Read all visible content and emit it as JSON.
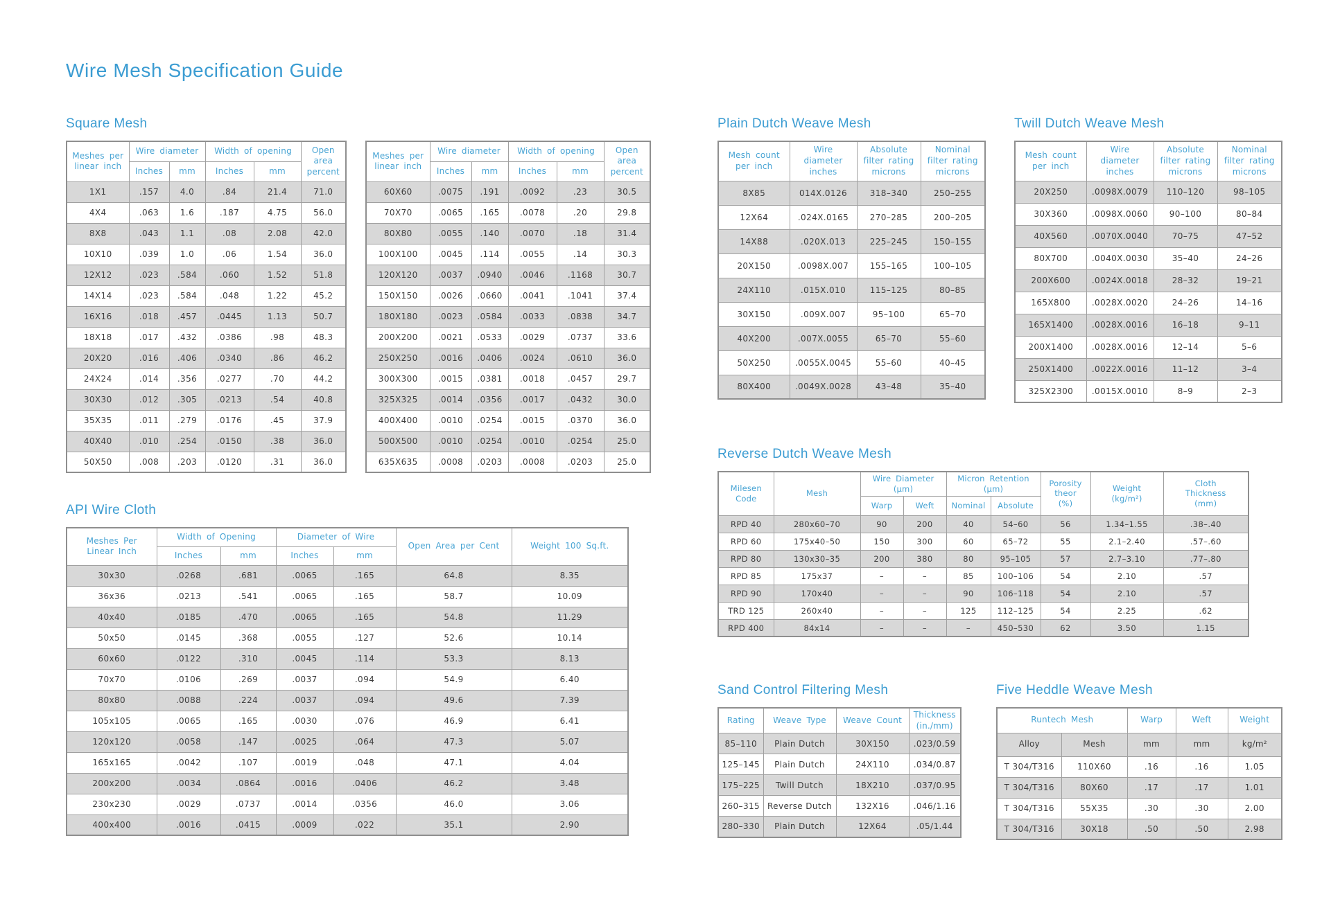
{
  "page_title": "Wire Mesh Specification Guide",
  "colors": {
    "accent": "#3b9cd2",
    "header_text": "#48a4d4",
    "row_shade": "#d8d8d8",
    "border": "#a0a0a0",
    "body_text": "#3c3c3c"
  },
  "square_mesh": {
    "heading": "Square Mesh",
    "headers": {
      "mesh": "Meshes per\nlinear inch",
      "wire_diameter": "Wire diameter",
      "width_of_opening": "Width of opening",
      "open_area": "Open area\npercent",
      "sub": [
        "Inches",
        "mm",
        "Inches",
        "mm"
      ]
    },
    "tables": [
      {
        "rows": [
          [
            "1X1",
            ".157",
            "4.0",
            ".84",
            "21.4",
            "71.0"
          ],
          [
            "4X4",
            ".063",
            "1.6",
            ".187",
            "4.75",
            "56.0"
          ],
          [
            "8X8",
            ".043",
            "1.1",
            ".08",
            "2.08",
            "42.0"
          ],
          [
            "10X10",
            ".039",
            "1.0",
            ".06",
            "1.54",
            "36.0"
          ],
          [
            "12X12",
            ".023",
            ".584",
            ".060",
            "1.52",
            "51.8"
          ],
          [
            "14X14",
            ".023",
            ".584",
            ".048",
            "1.22",
            "45.2"
          ],
          [
            "16X16",
            ".018",
            ".457",
            ".0445",
            "1.13",
            "50.7"
          ],
          [
            "18X18",
            ".017",
            ".432",
            ".0386",
            ".98",
            "48.3"
          ],
          [
            "20X20",
            ".016",
            ".406",
            ".0340",
            ".86",
            "46.2"
          ],
          [
            "24X24",
            ".014",
            ".356",
            ".0277",
            ".70",
            "44.2"
          ],
          [
            "30X30",
            ".012",
            ".305",
            ".0213",
            ".54",
            "40.8"
          ],
          [
            "35X35",
            ".011",
            ".279",
            ".0176",
            ".45",
            "37.9"
          ],
          [
            "40X40",
            ".010",
            ".254",
            ".0150",
            ".38",
            "36.0"
          ],
          [
            "50X50",
            ".008",
            ".203",
            ".0120",
            ".31",
            "36.0"
          ]
        ]
      },
      {
        "rows": [
          [
            "60X60",
            ".0075",
            ".191",
            ".0092",
            ".23",
            "30.5"
          ],
          [
            "70X70",
            ".0065",
            ".165",
            ".0078",
            ".20",
            "29.8"
          ],
          [
            "80X80",
            ".0055",
            ".140",
            ".0070",
            ".18",
            "31.4"
          ],
          [
            "100X100",
            ".0045",
            ".114",
            ".0055",
            ".14",
            "30.3"
          ],
          [
            "120X120",
            ".0037",
            ".0940",
            ".0046",
            ".1168",
            "30.7"
          ],
          [
            "150X150",
            ".0026",
            ".0660",
            ".0041",
            ".1041",
            "37.4"
          ],
          [
            "180X180",
            ".0023",
            ".0584",
            ".0033",
            ".0838",
            "34.7"
          ],
          [
            "200X200",
            ".0021",
            ".0533",
            ".0029",
            ".0737",
            "33.6"
          ],
          [
            "250X250",
            ".0016",
            ".0406",
            ".0024",
            ".0610",
            "36.0"
          ],
          [
            "300X300",
            ".0015",
            ".0381",
            ".0018",
            ".0457",
            "29.7"
          ],
          [
            "325X325",
            ".0014",
            ".0356",
            ".0017",
            ".0432",
            "30.0"
          ],
          [
            "400X400",
            ".0010",
            ".0254",
            ".0015",
            ".0370",
            "36.0"
          ],
          [
            "500X500",
            ".0010",
            ".0254",
            ".0010",
            ".0254",
            "25.0"
          ],
          [
            "635X635",
            ".0008",
            ".0203",
            ".0008",
            ".0203",
            "25.0"
          ]
        ]
      }
    ]
  },
  "api_wire_cloth": {
    "heading": "API Wire Cloth",
    "headers": {
      "mesh": "Meshes Per\nLinear Inch",
      "width_of_opening": "Width of Opening",
      "diameter_of_wire": "Diameter of Wire",
      "open_area": "Open Area per Cent",
      "weight": "Weight 100 Sq.ft.",
      "sub": [
        "Inches",
        "mm",
        "Inches",
        "mm"
      ]
    },
    "rows": [
      [
        "30x30",
        ".0268",
        ".681",
        ".0065",
        ".165",
        "64.8",
        "8.35"
      ],
      [
        "36x36",
        ".0213",
        ".541",
        ".0065",
        ".165",
        "58.7",
        "10.09"
      ],
      [
        "40x40",
        ".0185",
        ".470",
        ".0065",
        ".165",
        "54.8",
        "11.29"
      ],
      [
        "50x50",
        ".0145",
        ".368",
        ".0055",
        ".127",
        "52.6",
        "10.14"
      ],
      [
        "60x60",
        ".0122",
        ".310",
        ".0045",
        ".114",
        "53.3",
        "8.13"
      ],
      [
        "70x70",
        ".0106",
        ".269",
        ".0037",
        ".094",
        "54.9",
        "6.40"
      ],
      [
        "80x80",
        ".0088",
        ".224",
        ".0037",
        ".094",
        "49.6",
        "7.39"
      ],
      [
        "105x105",
        ".0065",
        ".165",
        ".0030",
        ".076",
        "46.9",
        "6.41"
      ],
      [
        "120x120",
        ".0058",
        ".147",
        ".0025",
        ".064",
        "47.3",
        "5.07"
      ],
      [
        "165x165",
        ".0042",
        ".107",
        ".0019",
        ".048",
        "47.1",
        "4.04"
      ],
      [
        "200x200",
        ".0034",
        ".0864",
        ".0016",
        ".0406",
        "46.2",
        "3.48"
      ],
      [
        "230x230",
        ".0029",
        ".0737",
        ".0014",
        ".0356",
        "46.0",
        "3.06"
      ],
      [
        "400x400",
        ".0016",
        ".0415",
        ".0009",
        ".022",
        "35.1",
        "2.90"
      ]
    ]
  },
  "plain_dutch": {
    "heading": "Plain Dutch Weave Mesh",
    "headers": [
      "Mesh count\nper inch",
      "Wire\ndiameter\ninches",
      "Absolute\nfilter rating\nmicrons",
      "Nominal\nfilter rating\nmicrons"
    ],
    "rows": [
      [
        "8X85",
        "014X.0126",
        "318–340",
        "250–255"
      ],
      [
        "12X64",
        ".024X.0165",
        "270–285",
        "200–205"
      ],
      [
        "14X88",
        ".020X.013",
        "225–245",
        "150–155"
      ],
      [
        "20X150",
        ".0098X.007",
        "155–165",
        "100–105"
      ],
      [
        "24X110",
        ".015X.010",
        "115–125",
        "80–85"
      ],
      [
        "30X150",
        ".009X.007",
        "95–100",
        "65–70"
      ],
      [
        "40X200",
        ".007X.0055",
        "65–70",
        "55–60"
      ],
      [
        "50X250",
        ".0055X.0045",
        "55–60",
        "40–45"
      ],
      [
        "80X400",
        ".0049X.0028",
        "43–48",
        "35–40"
      ]
    ]
  },
  "twill_dutch": {
    "heading": "Twill Dutch Weave Mesh",
    "headers": [
      "Mesh count\nper inch",
      "Wire\ndiameter\ninches",
      "Absolute\nfilter rating\nmicrons",
      "Nominal\nfilter rating\nmicrons"
    ],
    "rows": [
      [
        "20X250",
        ".0098X.0079",
        "110–120",
        "98–105"
      ],
      [
        "30X360",
        ".0098X.0060",
        "90–100",
        "80–84"
      ],
      [
        "40X560",
        ".0070X.0040",
        "70–75",
        "47–52"
      ],
      [
        "80X700",
        ".0040X.0030",
        "35–40",
        "24–26"
      ],
      [
        "200X600",
        ".0024X.0018",
        "28–32",
        "19–21"
      ],
      [
        "165X800",
        ".0028X.0020",
        "24–26",
        "14–16"
      ],
      [
        "165X1400",
        ".0028X.0016",
        "16–18",
        "9–11"
      ],
      [
        "200X1400",
        ".0028X.0016",
        "12–14",
        "5–6"
      ],
      [
        "250X1400",
        ".0022X.0016",
        "11–12",
        "3–4"
      ],
      [
        "325X2300",
        ".0015X.0010",
        "8–9",
        "2–3"
      ]
    ]
  },
  "reverse_dutch": {
    "heading": "Reverse Dutch Weave Mesh",
    "headers": {
      "code": "Milesen\nCode",
      "mesh": "Mesh",
      "wire_diameter": "Wire Diameter (μm)",
      "micron_retention": "Micron Retention (μm)",
      "porosity": "Porosity\ntheor\n(%)",
      "weight": "Weight\n(kg/m²)",
      "thickness": "Cloth\nThickness\n(mm)",
      "sub": [
        "Warp",
        "Weft",
        "Nominal",
        "Absolute"
      ]
    },
    "rows": [
      [
        "RPD 40",
        "280x60–70",
        "90",
        "200",
        "40",
        "54–60",
        "56",
        "1.34–1.55",
        ".38–.40"
      ],
      [
        "RPD 60",
        "175x40–50",
        "150",
        "300",
        "60",
        "65–72",
        "55",
        "2.1–2.40",
        ".57–.60"
      ],
      [
        "RPD 80",
        "130x30–35",
        "200",
        "380",
        "80",
        "95–105",
        "57",
        "2.7–3.10",
        ".77–.80"
      ],
      [
        "RPD 85",
        "175x37",
        "–",
        "–",
        "85",
        "100–106",
        "54",
        "2.10",
        ".57"
      ],
      [
        "RPD 90",
        "170x40",
        "–",
        "–",
        "90",
        "106–118",
        "54",
        "2.10",
        ".57"
      ],
      [
        "TRD 125",
        "260x40",
        "–",
        "–",
        "125",
        "112–125",
        "54",
        "2.25",
        ".62"
      ],
      [
        "RPD 400",
        "84x14",
        "–",
        "–",
        "–",
        "450–530",
        "62",
        "3.50",
        "1.15"
      ]
    ]
  },
  "sand_control": {
    "heading": "Sand Control Filtering Mesh",
    "headers": [
      "Rating",
      "Weave Type",
      "Weave Count",
      "Thickness\n(in./mm)"
    ],
    "rows": [
      [
        "85–110",
        "Plain Dutch",
        "30X150",
        ".023/0.59"
      ],
      [
        "125–145",
        "Plain Dutch",
        "24X110",
        ".034/0.87"
      ],
      [
        "175–225",
        "Twill Dutch",
        "18X210",
        ".037/0.95"
      ],
      [
        "260–315",
        "Reverse Dutch",
        "132X16",
        ".046/1.16"
      ],
      [
        "280–330",
        "Plain Dutch",
        "12X64",
        ".05/1.44"
      ]
    ]
  },
  "five_heddle": {
    "heading": "Five Heddle Weave Mesh",
    "headers": {
      "runtech": "Runtech Mesh",
      "warp": "Warp",
      "weft": "Weft",
      "weight": "Weight"
    },
    "unit_row": [
      "Alloy",
      "Mesh",
      "mm",
      "mm",
      "kg/m²"
    ],
    "rows": [
      [
        "T 304/T316",
        "110X60",
        ".16",
        ".16",
        "1.05"
      ],
      [
        "T 304/T316",
        "80X60",
        ".17",
        ".17",
        "1.01"
      ],
      [
        "T 304/T316",
        "55X35",
        ".30",
        ".30",
        "2.00"
      ],
      [
        "T 304/T316",
        "30X18",
        ".50",
        ".50",
        "2.98"
      ]
    ]
  }
}
